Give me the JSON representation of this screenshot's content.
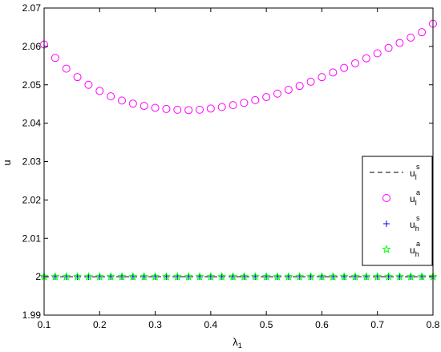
{
  "chart_data": {
    "type": "scatter",
    "title": "",
    "xlabel": "λ",
    "xlabel_sub": "1",
    "ylabel": "u",
    "xlim": [
      0.1,
      0.8
    ],
    "ylim": [
      1.99,
      2.07
    ],
    "xticks": [
      "0.1",
      "0.2",
      "0.3",
      "0.4",
      "0.5",
      "0.6",
      "0.7",
      "0.8"
    ],
    "yticks": [
      "1.99",
      "2",
      "2.01",
      "2.02",
      "2.03",
      "2.04",
      "2.05",
      "2.06",
      "2.07"
    ],
    "x": [
      0.1,
      0.12,
      0.14,
      0.16,
      0.18,
      0.2,
      0.22,
      0.24,
      0.26,
      0.28,
      0.3,
      0.32,
      0.34,
      0.36,
      0.38,
      0.4,
      0.42,
      0.44,
      0.46,
      0.48,
      0.5,
      0.52,
      0.54,
      0.56,
      0.58,
      0.6,
      0.62,
      0.64,
      0.66,
      0.68,
      0.7,
      0.72,
      0.74,
      0.76,
      0.78,
      0.8
    ],
    "grid": false,
    "legend_position": "lower-right",
    "series": [
      {
        "name": "u_l^s",
        "legend_base": "u",
        "legend_sub": "l",
        "legend_sup": "s",
        "style": "dashed-line",
        "color": "#000000",
        "values": [
          2,
          2,
          2,
          2,
          2,
          2,
          2,
          2,
          2,
          2,
          2,
          2,
          2,
          2,
          2,
          2,
          2,
          2,
          2,
          2,
          2,
          2,
          2,
          2,
          2,
          2,
          2,
          2,
          2,
          2,
          2,
          2,
          2,
          2,
          2,
          2
        ]
      },
      {
        "name": "u_l^a",
        "legend_base": "u",
        "legend_sub": "l",
        "legend_sup": "a",
        "style": "circle",
        "color": "#ff00ff",
        "values": [
          2.0605,
          2.057,
          2.0542,
          2.052,
          2.05,
          2.0484,
          2.047,
          2.0459,
          2.0451,
          2.0445,
          2.044,
          2.0437,
          2.0435,
          2.0434,
          2.0435,
          2.0438,
          2.0442,
          2.0447,
          2.0453,
          2.046,
          2.0468,
          2.0477,
          2.0487,
          2.0497,
          2.0508,
          2.052,
          2.0532,
          2.0544,
          2.0556,
          2.0569,
          2.0582,
          2.0596,
          2.0609,
          2.0623,
          2.0637,
          2.0659
        ]
      },
      {
        "name": "u_h^s",
        "legend_base": "u",
        "legend_sub": "h",
        "legend_sup": "s",
        "style": "plus",
        "color": "#0000ff",
        "values": [
          2,
          2,
          2,
          2,
          2,
          2,
          2,
          2,
          2,
          2,
          2,
          2,
          2,
          2,
          2,
          2,
          2,
          2,
          2,
          2,
          2,
          2,
          2,
          2,
          2,
          2,
          2,
          2,
          2,
          2,
          2,
          2,
          2,
          2,
          2,
          2
        ]
      },
      {
        "name": "u_h^a",
        "legend_base": "u",
        "legend_sub": "h",
        "legend_sup": "a",
        "style": "star",
        "color": "#00ff00",
        "values": [
          2,
          2,
          2,
          2,
          2,
          2,
          2,
          2,
          2,
          2,
          2,
          2,
          2,
          2,
          2,
          2,
          2,
          2,
          2,
          2,
          2,
          2,
          2,
          2,
          2,
          2,
          2,
          2,
          2,
          2,
          2,
          2,
          2,
          2,
          2,
          2
        ]
      }
    ]
  }
}
